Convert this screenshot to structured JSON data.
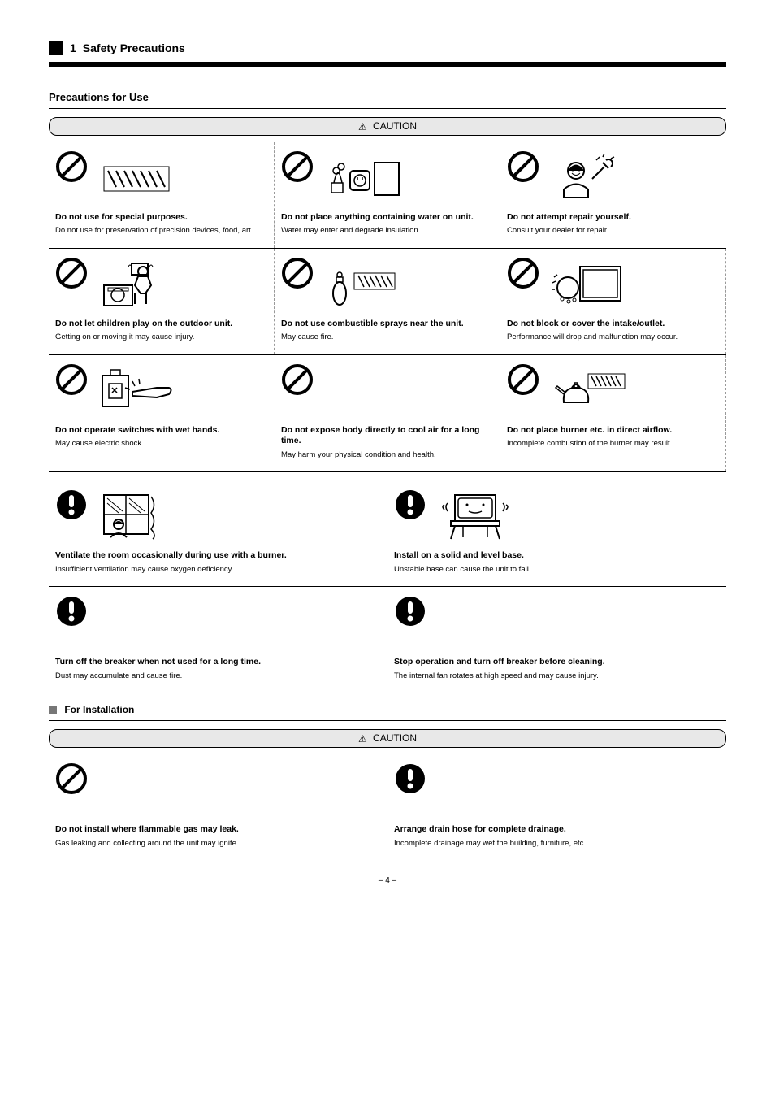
{
  "page": {
    "number": "4",
    "header_label": "1",
    "header_text": "Safety Precautions"
  },
  "section1": {
    "title": "Precautions for Use",
    "caution_label": "CAUTION"
  },
  "grid3_rows": [
    [
      {
        "symbol": "prohibit",
        "picto": "grille",
        "title": "Do not use for special purposes.",
        "body": "Do not use for preservation of precision devices, food, art."
      },
      {
        "symbol": "prohibit",
        "picto": "plant_outlet",
        "title": "Do not place anything containing water on unit.",
        "body": "Water may enter and degrade insulation."
      },
      {
        "symbol": "prohibit",
        "picto": "person_wrench",
        "title": "Do not attempt repair yourself.",
        "body": "Consult your dealer for repair."
      }
    ],
    [
      {
        "symbol": "prohibit",
        "picto": "child_lifting",
        "title": "Do not let children play on the outdoor unit.",
        "body": "Getting on or moving it may cause injury."
      },
      {
        "symbol": "prohibit",
        "picto": "spray_grille",
        "title": "Do not use combustible sprays near the unit.",
        "body": "May cause fire."
      },
      {
        "symbol": "prohibit",
        "picto": "ball_unit",
        "title": "Do not block or cover the intake/outlet.",
        "body": "Performance will drop and malfunction may occur."
      }
    ],
    [
      {
        "symbol": "prohibit",
        "picto": "switch_hand",
        "title": "Do not operate switches with wet hands.",
        "body": "May cause electric shock."
      },
      {
        "symbol": "prohibit",
        "picto": "none",
        "title": "Do not expose body directly to cool air for a long time.",
        "body": "May harm your physical condition and health."
      },
      {
        "symbol": "prohibit",
        "picto": "kettle_grille",
        "title": "Do not place burner etc. in direct airflow.",
        "body": "Incomplete combustion of the burner may result."
      }
    ]
  ],
  "grid2a_rows": [
    [
      {
        "symbol": "mandatory",
        "picto": "window_person",
        "title": "Ventilate the room occasionally during use with a burner.",
        "body": "Insufficient ventilation may cause oxygen deficiency."
      },
      {
        "symbol": "mandatory",
        "picto": "unit_stand",
        "title": "Install on a solid and level base.",
        "body": "Unstable base can cause the unit to fall."
      }
    ],
    [
      {
        "symbol": "mandatory",
        "picto": "none",
        "title": "Turn off the breaker when not used for a long time.",
        "body": "Dust may accumulate and cause fire."
      },
      {
        "symbol": "mandatory",
        "picto": "none",
        "title": "Stop operation and turn off breaker before cleaning.",
        "body": "The internal fan rotates at high speed and may cause injury."
      }
    ]
  ],
  "section2": {
    "sub_title": "For Installation",
    "caution_label": "CAUTION"
  },
  "grid2b_rows": [
    [
      {
        "symbol": "prohibit",
        "picto": "none",
        "title": "Do not install where flammable gas may leak.",
        "body": "Gas leaking and collecting around the unit may ignite."
      },
      {
        "symbol": "mandatory",
        "picto": "none",
        "title": "Arrange drain hose for complete drainage.",
        "body": "Incomplete drainage may wet the building, furniture, etc."
      }
    ]
  ]
}
